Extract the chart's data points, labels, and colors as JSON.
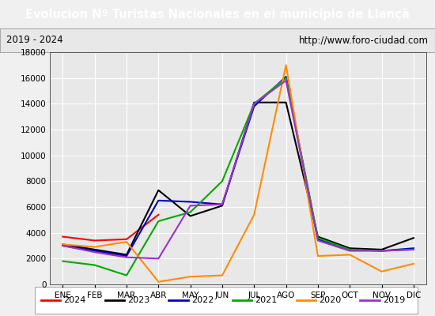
{
  "title": "Evolucion Nº Turistas Nacionales en el municipio de Llançà",
  "title_color": "#ffffff",
  "title_bg_color": "#4472c4",
  "subtitle_left": "2019 - 2024",
  "subtitle_right": "http://www.foro-ciudad.com",
  "subtitle_bg_color": "#e8e8e8",
  "subtitle_border_color": "#aaaaaa",
  "months": [
    "ENE",
    "FEB",
    "MAR",
    "ABR",
    "MAY",
    "JUN",
    "JUL",
    "AGO",
    "SEP",
    "OCT",
    "NOV",
    "DIC"
  ],
  "ylim": [
    0,
    18000
  ],
  "yticks": [
    0,
    2000,
    4000,
    6000,
    8000,
    10000,
    12000,
    14000,
    16000,
    18000
  ],
  "series": {
    "2024": {
      "color": "#ff0000",
      "data": [
        3700,
        3400,
        3500,
        5400,
        null,
        null,
        null,
        null,
        null,
        null,
        null,
        null
      ]
    },
    "2023": {
      "color": "#000000",
      "data": [
        3100,
        2700,
        2300,
        7300,
        5300,
        6100,
        14100,
        14100,
        3700,
        2800,
        2700,
        3600
      ]
    },
    "2022": {
      "color": "#0000cc",
      "data": [
        3000,
        2600,
        2200,
        6500,
        6400,
        6200,
        13800,
        16100,
        3500,
        2700,
        2600,
        2800
      ]
    },
    "2021": {
      "color": "#00aa00",
      "data": [
        1800,
        1500,
        700,
        4900,
        5600,
        8000,
        14000,
        16000,
        3600,
        2700,
        2600,
        2700
      ]
    },
    "2020": {
      "color": "#ff8c00",
      "data": [
        3100,
        2900,
        3300,
        200,
        600,
        700,
        5400,
        17000,
        2200,
        2300,
        1000,
        1600
      ]
    },
    "2019": {
      "color": "#9932cc",
      "data": [
        3000,
        2500,
        2100,
        2000,
        6100,
        6200,
        14000,
        15800,
        3400,
        2600,
        2600,
        2700
      ]
    }
  },
  "legend_order": [
    "2024",
    "2023",
    "2022",
    "2021",
    "2020",
    "2019"
  ],
  "bg_color": "#f0f0f0",
  "plot_bg_color": "#e8e8e8",
  "grid_color": "#ffffff",
  "tick_label_color": "#000000",
  "axis_color": "#555555",
  "fig_width": 5.5,
  "fig_height": 4.0,
  "dpi": 100
}
